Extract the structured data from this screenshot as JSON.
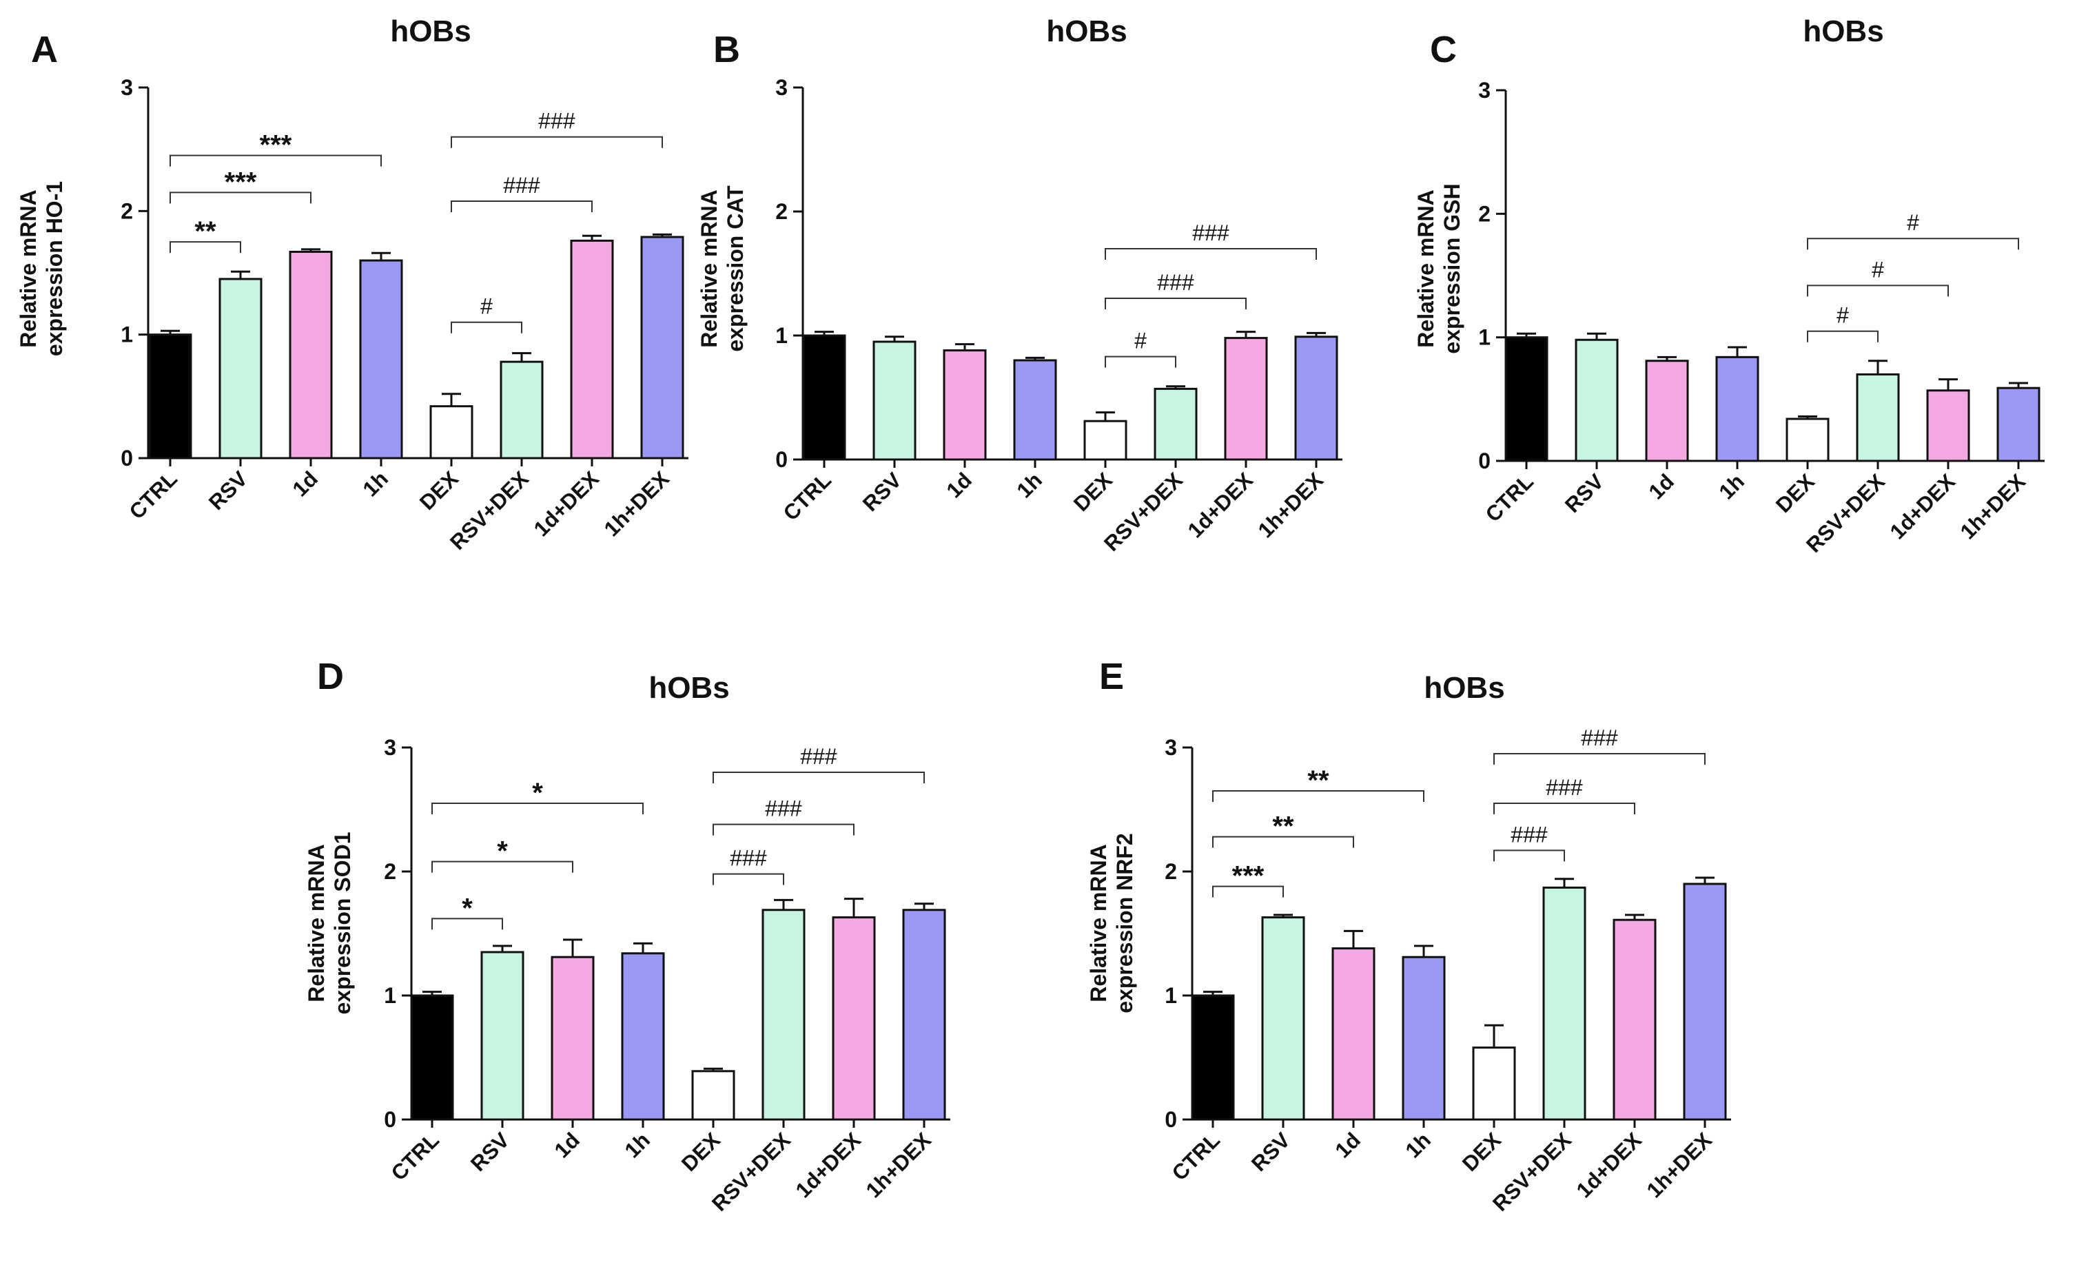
{
  "chart_data": [
    {
      "panel": "A",
      "type": "bar",
      "title": "hOBs",
      "ylabel": [
        "Relative mRNA",
        "expression HO-1"
      ],
      "categories": [
        "CTRL",
        "RSV",
        "1d",
        "1h",
        "DEX",
        "RSV+DEX",
        "1d+DEX",
        "1h+DEX"
      ],
      "values": [
        1.0,
        1.45,
        1.67,
        1.6,
        0.42,
        0.78,
        1.76,
        1.79
      ],
      "errors": [
        0.03,
        0.06,
        0.02,
        0.06,
        0.1,
        0.07,
        0.04,
        0.02
      ],
      "ylim": [
        0,
        3
      ],
      "yticks": [
        "0",
        "1",
        "2",
        "3"
      ],
      "comparisons": [
        {
          "from": 0,
          "to": 1,
          "label": "**",
          "y": 1.75
        },
        {
          "from": 0,
          "to": 2,
          "label": "***",
          "y": 2.15
        },
        {
          "from": 0,
          "to": 3,
          "label": "***",
          "y": 2.45
        },
        {
          "from": 4,
          "to": 5,
          "label": "#",
          "y": 1.1
        },
        {
          "from": 4,
          "to": 6,
          "label": "###",
          "y": 2.08
        },
        {
          "from": 4,
          "to": 7,
          "label": "###",
          "y": 2.6
        }
      ]
    },
    {
      "panel": "B",
      "type": "bar",
      "title": "hOBs",
      "ylabel": [
        "Relative mRNA",
        "expression CAT"
      ],
      "categories": [
        "CTRL",
        "RSV",
        "1d",
        "1h",
        "DEX",
        "RSV+DEX",
        "1d+DEX",
        "1h+DEX"
      ],
      "values": [
        1.0,
        0.95,
        0.88,
        0.8,
        0.31,
        0.57,
        0.98,
        0.99
      ],
      "errors": [
        0.03,
        0.04,
        0.05,
        0.02,
        0.07,
        0.02,
        0.05,
        0.03
      ],
      "ylim": [
        0,
        3
      ],
      "yticks": [
        "0",
        "1",
        "2",
        "3"
      ],
      "comparisons": [
        {
          "from": 4,
          "to": 5,
          "label": "#",
          "y": 0.83
        },
        {
          "from": 4,
          "to": 6,
          "label": "###",
          "y": 1.3
        },
        {
          "from": 4,
          "to": 7,
          "label": "###",
          "y": 1.7
        }
      ]
    },
    {
      "panel": "C",
      "type": "bar",
      "title": "hOBs",
      "ylabel": [
        "Relative mRNA",
        "expression GSH"
      ],
      "categories": [
        "CTRL",
        "RSV",
        "1d",
        "1h",
        "DEX",
        "RSV+DEX",
        "1d+DEX",
        "1h+DEX"
      ],
      "values": [
        1.0,
        0.98,
        0.81,
        0.84,
        0.34,
        0.7,
        0.57,
        0.59
      ],
      "errors": [
        0.03,
        0.05,
        0.03,
        0.08,
        0.02,
        0.11,
        0.09,
        0.04
      ],
      "ylim": [
        0,
        3
      ],
      "yticks": [
        "0",
        "1",
        "2",
        "3"
      ],
      "comparisons": [
        {
          "from": 4,
          "to": 5,
          "label": "#",
          "y": 1.05
        },
        {
          "from": 4,
          "to": 6,
          "label": "#",
          "y": 1.42
        },
        {
          "from": 4,
          "to": 7,
          "label": "#",
          "y": 1.8
        }
      ]
    },
    {
      "panel": "D",
      "type": "bar",
      "title": "hOBs",
      "ylabel": [
        "Relative mRNA",
        "expression SOD1"
      ],
      "categories": [
        "CTRL",
        "RSV",
        "1d",
        "1h",
        "DEX",
        "RSV+DEX",
        "1d+DEX",
        "1h+DEX"
      ],
      "values": [
        1.0,
        1.35,
        1.31,
        1.34,
        0.39,
        1.69,
        1.63,
        1.69
      ],
      "errors": [
        0.03,
        0.05,
        0.14,
        0.08,
        0.02,
        0.08,
        0.15,
        0.05
      ],
      "ylim": [
        0,
        3
      ],
      "yticks": [
        "0",
        "1",
        "2",
        "3"
      ],
      "comparisons": [
        {
          "from": 0,
          "to": 1,
          "label": "*",
          "y": 1.62
        },
        {
          "from": 0,
          "to": 2,
          "label": "*",
          "y": 2.08
        },
        {
          "from": 0,
          "to": 3,
          "label": "*",
          "y": 2.55
        },
        {
          "from": 4,
          "to": 5,
          "label": "###",
          "y": 1.98
        },
        {
          "from": 4,
          "to": 6,
          "label": "###",
          "y": 2.38
        },
        {
          "from": 4,
          "to": 7,
          "label": "###",
          "y": 2.8
        }
      ]
    },
    {
      "panel": "E",
      "type": "bar",
      "title": "hOBs",
      "ylabel": [
        "Relative mRNA",
        "expression NRF2"
      ],
      "categories": [
        "CTRL",
        "RSV",
        "1d",
        "1h",
        "DEX",
        "RSV+DEX",
        "1d+DEX",
        "1h+DEX"
      ],
      "values": [
        1.0,
        1.63,
        1.38,
        1.31,
        0.58,
        1.87,
        1.61,
        1.9
      ],
      "errors": [
        0.03,
        0.02,
        0.14,
        0.09,
        0.18,
        0.07,
        0.04,
        0.05
      ],
      "ylim": [
        0,
        3
      ],
      "yticks": [
        "0",
        "1",
        "2",
        "3"
      ],
      "comparisons": [
        {
          "from": 0,
          "to": 1,
          "label": "***",
          "y": 1.88
        },
        {
          "from": 0,
          "to": 2,
          "label": "**",
          "y": 2.28
        },
        {
          "from": 0,
          "to": 3,
          "label": "**",
          "y": 2.65
        },
        {
          "from": 4,
          "to": 5,
          "label": "###",
          "y": 2.17
        },
        {
          "from": 4,
          "to": 6,
          "label": "###",
          "y": 2.55
        },
        {
          "from": 4,
          "to": 7,
          "label": "###",
          "y": 2.95
        }
      ]
    }
  ],
  "bar_colors": [
    "#000000",
    "#c8f5e1",
    "#f5a9e3",
    "#9a9af5",
    "#ffffff",
    "#c8f5e1",
    "#f5a9e3",
    "#9a9af5"
  ]
}
